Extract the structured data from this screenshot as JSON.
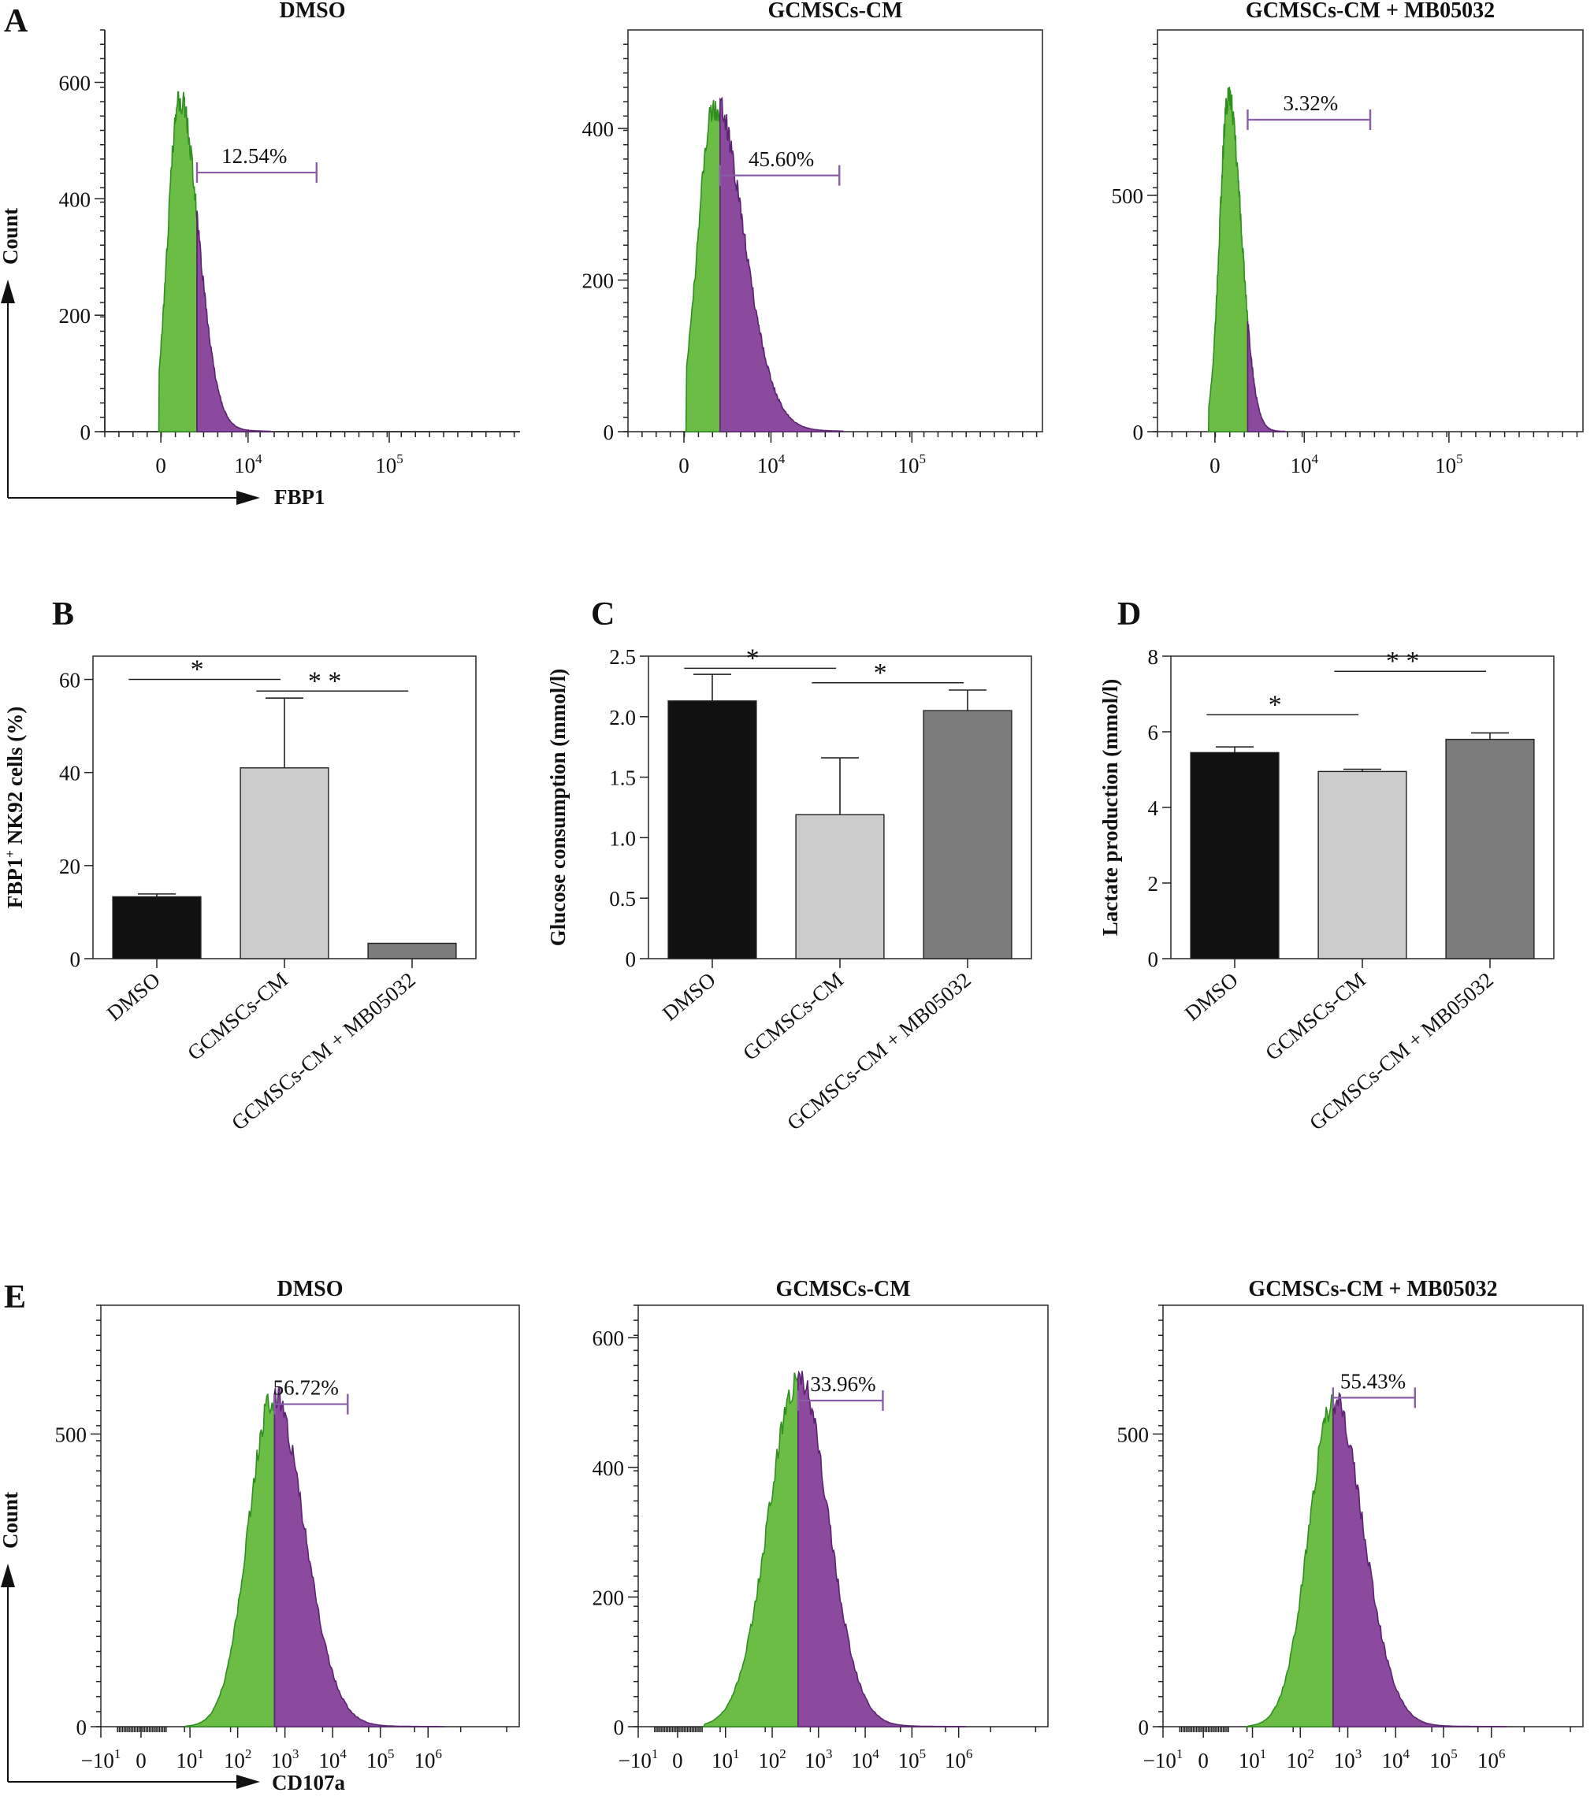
{
  "panel_A": {
    "label": "A",
    "x_axis_label": "FBP1",
    "y_axis_label": "Count",
    "chart_data": [
      {
        "type": "histogram",
        "title": "DMSO",
        "gate_percent": "12.54%",
        "yticks": [
          0,
          200,
          400,
          600
        ],
        "ylim": [
          0,
          690
        ],
        "xticks": [
          "0",
          "10^4",
          "10^5"
        ],
        "peak_count": 585
      },
      {
        "type": "histogram",
        "title": "GCMSCs-CM",
        "gate_percent": "45.60%",
        "yticks": [
          0,
          200,
          400
        ],
        "ylim": [
          0,
          530
        ],
        "xticks": [
          "0",
          "10^4",
          "10^5"
        ],
        "peak_count": 440
      },
      {
        "type": "histogram",
        "title": "GCMSCs-CM + MB05032",
        "gate_percent": "3.32%",
        "yticks": [
          0,
          500
        ],
        "ylim": [
          0,
          850
        ],
        "xticks": [
          "0",
          "10^4",
          "10^5"
        ],
        "peak_count": 730
      }
    ]
  },
  "panel_B": {
    "label": "B",
    "chart_data": {
      "type": "bar",
      "categories": [
        "DMSO",
        "GCMSCs-CM",
        "GCMSCs-CM + MB05032"
      ],
      "values": [
        13.3,
        41.0,
        3.3
      ],
      "errors": [
        0.6,
        15.0,
        0
      ],
      "colors": [
        "#111111",
        "#cccccc",
        "#7c7c7c"
      ],
      "ylabel_prefix": "FBP1",
      "ylabel_sup": "+",
      "ylabel_suffix": " NK92 cells (%)",
      "ylim": [
        0,
        65
      ],
      "yticks": [
        0,
        20,
        40,
        60
      ],
      "significance": [
        {
          "from": 0,
          "to": 1,
          "label": "*",
          "y": 60
        },
        {
          "from": 1,
          "to": 2,
          "label": "* *",
          "y": 57.5
        }
      ]
    }
  },
  "panel_C": {
    "label": "C",
    "chart_data": {
      "type": "bar",
      "categories": [
        "DMSO",
        "GCMSCs-CM",
        "GCMSCs-CM + MB05032"
      ],
      "values": [
        2.13,
        1.19,
        2.05
      ],
      "errors": [
        0.22,
        0.47,
        0.17
      ],
      "colors": [
        "#111111",
        "#cccccc",
        "#7c7c7c"
      ],
      "ylabel": "Glucose consumption (mmol/l)",
      "ylim": [
        0,
        2.5
      ],
      "yticks": [
        "0",
        "0.5",
        "1.0",
        "1.5",
        "2.0",
        "2.5"
      ],
      "significance": [
        {
          "from": 0,
          "to": 1,
          "label": "*",
          "y": 2.4
        },
        {
          "from": 1,
          "to": 2,
          "label": "*",
          "y": 2.28
        }
      ]
    }
  },
  "panel_D": {
    "label": "D",
    "chart_data": {
      "type": "bar",
      "categories": [
        "DMSO",
        "GCMSCs-CM",
        "GCMSCs-CM + MB05032"
      ],
      "values": [
        5.45,
        4.95,
        5.8
      ],
      "errors": [
        0.15,
        0.06,
        0.17
      ],
      "colors": [
        "#111111",
        "#cccccc",
        "#7c7c7c"
      ],
      "ylabel": "Lactate production (mmol/l)",
      "ylim": [
        0,
        8
      ],
      "yticks": [
        0,
        2,
        4,
        6,
        8
      ],
      "significance": [
        {
          "from": 0,
          "to": 1,
          "label": "*",
          "y": 6.45
        },
        {
          "from": 1,
          "to": 2,
          "label": "* *",
          "y": 7.6
        }
      ]
    }
  },
  "panel_E": {
    "label": "E",
    "x_axis_label": "CD107a",
    "y_axis_label": "Count",
    "chart_data": [
      {
        "type": "histogram",
        "title": "DMSO",
        "gate_percent": "56.72%",
        "yticks": [
          0,
          500
        ],
        "ylim": [
          0,
          720
        ],
        "xticks": [
          "−10^1",
          "0",
          "10^1",
          "10^2",
          "10^3",
          "10^4",
          "10^5",
          "10^6"
        ],
        "peak_count": 580
      },
      {
        "type": "histogram",
        "title": "GCMSCs-CM",
        "gate_percent": "33.96%",
        "yticks": [
          0,
          200,
          400,
          600
        ],
        "ylim": [
          0,
          650
        ],
        "xticks": [
          "−10^1",
          "0",
          "10^1",
          "10^2",
          "10^3",
          "10^4",
          "10^5",
          "10^6"
        ],
        "peak_count": 550
      },
      {
        "type": "histogram",
        "title": "GCMSCs-CM + MB05032",
        "gate_percent": "55.43%",
        "yticks": [
          0,
          500
        ],
        "ylim": [
          0,
          720
        ],
        "xticks": [
          "−10^1",
          "0",
          "10^1",
          "10^2",
          "10^3",
          "10^4",
          "10^5",
          "10^6"
        ],
        "peak_count": 570
      }
    ]
  },
  "colors": {
    "green": "#6cbd45",
    "green_edge": "#2f8f1f",
    "purple": "#8b4a9e",
    "purple_edge": "#5a2470",
    "gate": "#8a5ea6"
  }
}
